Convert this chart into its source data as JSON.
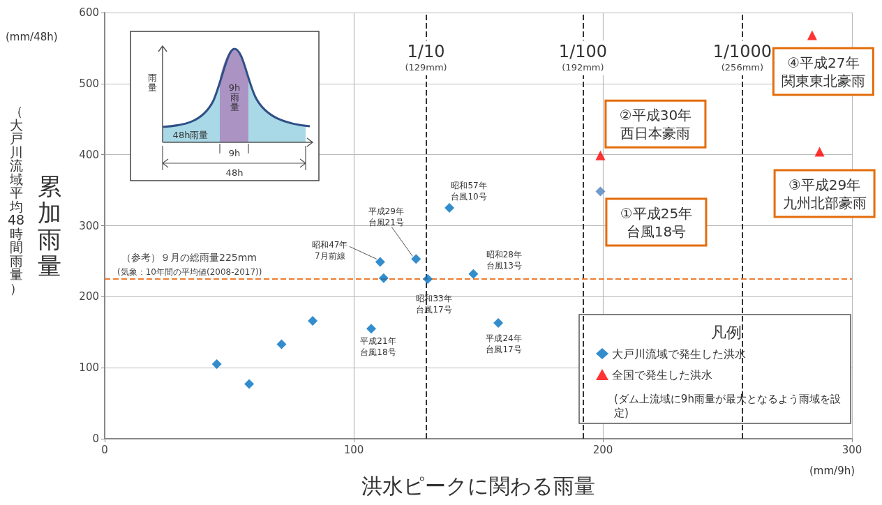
{
  "chart_data": {
    "type": "scatter",
    "ylabel": "累加雨量",
    "xlabel": "洪水ピークに関わる雨量",
    "legend_title": "凡例",
    "legend": "bottom right",
    "grid": true,
    "xlim": [
      0,
      300
    ],
    "xticks": [
      0,
      100,
      200,
      300
    ],
    "ylim": [
      0,
      600
    ],
    "yticks": [
      0,
      100,
      200,
      300,
      400,
      500,
      600
    ],
    "series": [
      {
        "name": "大戸川流域で発生した洪水",
        "marker": "diamond",
        "color": "#0070c0",
        "x": [
          45,
          58,
          71,
          83.5,
          107,
          110.6,
          112,
          125,
          129.7,
          138.4,
          148,
          158,
          199
        ],
        "values": [
          105,
          77,
          133,
          166,
          155,
          249,
          226,
          253,
          225,
          325,
          232,
          163,
          348
        ],
        "colors": [
          "#0070c0",
          "#0070c0",
          "#0070c0",
          "#0070c0",
          "#0070c0",
          "#0070c0",
          "#0070c0",
          "#0070c0",
          "#0070c0",
          "#0070c0",
          "#0070c0",
          "#0070c0",
          "#4f81bd"
        ]
      },
      {
        "name": "全国で発生した洪水",
        "marker": "triangle",
        "color": "#ff0000",
        "x": [
          199,
          287,
          284
        ],
        "values": [
          399,
          404,
          568
        ]
      }
    ],
    "ref_lines": [
      {
        "axis": "x",
        "value": 129,
        "label": "1/10\n(129mm)",
        "color": "#333333",
        "line_style": "dashed"
      },
      {
        "axis": "x",
        "value": 192,
        "label": "1/100\n(192mm)",
        "color": "#333333",
        "line_style": "dashed"
      },
      {
        "axis": "x",
        "value": 256,
        "label": "1/1000\n(256mm)",
        "color": "#333333",
        "line_style": "dashed"
      },
      {
        "axis": "y",
        "value": 225,
        "label": "（参考）９月の総雨量225mm",
        "color": "#ed7d31",
        "line_style": "dashed"
      }
    ],
    "annotations": [
      {
        "text": "①平成25年台風18号",
        "x": 199,
        "y": 348
      },
      {
        "text": "②平成30年西日本豪雨",
        "x": 199,
        "y": 399
      },
      {
        "text": "③平成29年九州北部豪雨",
        "x": 287,
        "y": 404
      },
      {
        "text": "④平成27年関東東北豪雨",
        "x": 284,
        "y": 568
      },
      {
        "text": "昭和57年台風10号",
        "x": 138.4,
        "y": 325
      },
      {
        "text": "平成29年台風21号",
        "x": 125,
        "y": 253
      },
      {
        "text": "昭和47年7月前線",
        "x": 110.6,
        "y": 249
      },
      {
        "text": "昭和28年台風13号",
        "x": 148,
        "y": 232
      },
      {
        "text": "昭和33年台風17号",
        "x": 129.7,
        "y": 225
      },
      {
        "text": "平成21年台風18号",
        "x": 107,
        "y": 155
      },
      {
        "text": "平成24年台風17号",
        "x": 158,
        "y": 163
      },
      "(mm/48h)",
      "(mm/9h)",
      "（大戸川流域平均48時間雨量）",
      "雨量",
      "9h雨量",
      "48h雨量",
      "9h",
      "48h",
      "(気象：10年間の平均値(2008-2017))",
      "(ダム上流域に9h雨量が最大となるよう雨域を設定)"
    ]
  }
}
